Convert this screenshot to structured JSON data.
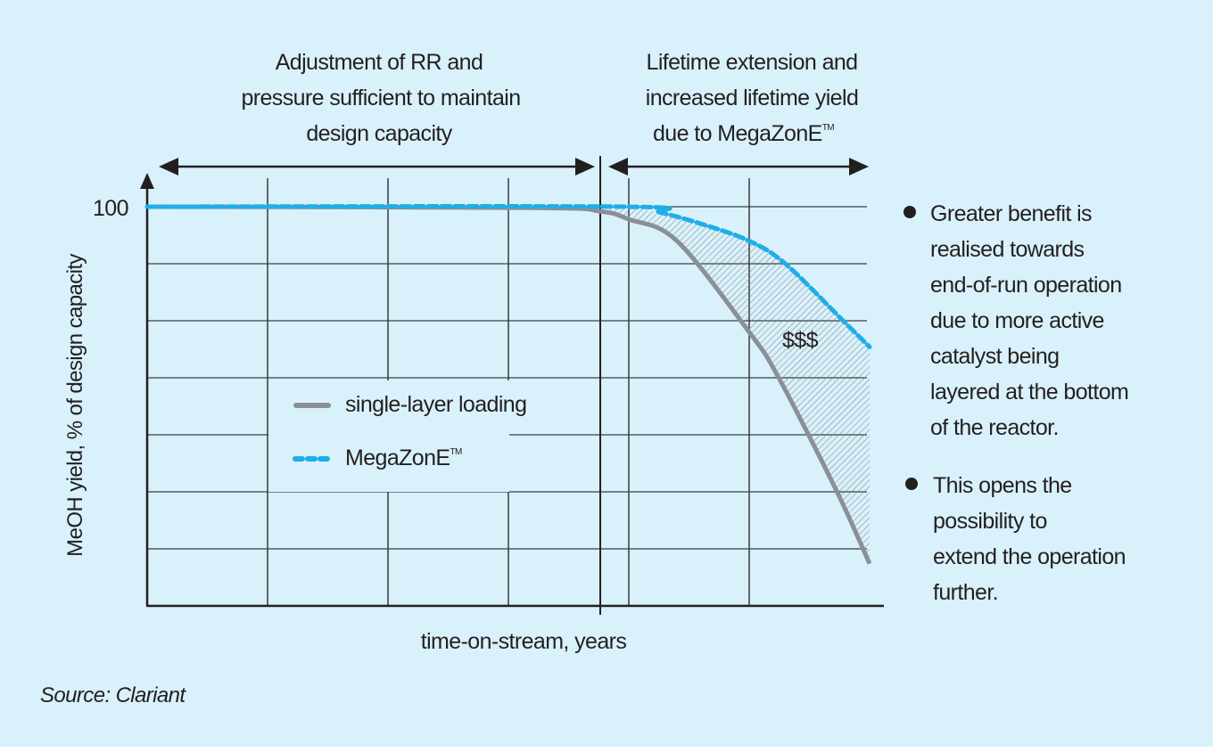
{
  "colors": {
    "background": "#d9f1fb",
    "single_layer": "#8a9096",
    "megazone": "#1eaee8",
    "grid": "#231f20"
  },
  "annotations": {
    "left_phase": [
      "Adjustment of RR and",
      "pressure sufficient to maintain",
      "design capacity"
    ],
    "right_phase": [
      "Lifetime extension and",
      "increased lifetime yield",
      "due to MegaZonE"
    ],
    "right_phase_tm": "TM",
    "area_label": "$$$"
  },
  "notes": {
    "bullet1": [
      "Greater benefit is",
      "realised towards",
      "end-of-run operation",
      "due to more active",
      "catalyst being",
      "layered at the bottom",
      "of the reactor."
    ],
    "bullet2": [
      "This opens the",
      "possibility to",
      "extend the operation",
      "further."
    ]
  },
  "source": "Source: Clariant",
  "chart_data": {
    "type": "line",
    "title": "",
    "xlabel": "time-on-stream, years",
    "ylabel": "MeOH yield, % of design capacity",
    "ytick_labels": [
      "100"
    ],
    "xlim": [
      0,
      6.1
    ],
    "ylim": [
      65,
      100
    ],
    "grid": true,
    "legend_position": "center-left",
    "series": [
      {
        "name": "single-layer loading",
        "style": "solid",
        "x": [
          0,
          3.2,
          3.76,
          4.0,
          4.4,
          5.0,
          5.24,
          5.72,
          6.0
        ],
        "y": [
          100,
          99.9,
          99.6,
          98.9,
          97.0,
          89.0,
          85.1,
          75.2,
          68.7
        ]
      },
      {
        "name": "MegaZonE",
        "name_suffix": "TM",
        "style": "dashed",
        "x": [
          0,
          3.96,
          4.26,
          4.63,
          5.0,
          5.3,
          5.78,
          6.0
        ],
        "y": [
          100,
          100,
          99.5,
          98.4,
          97.0,
          95.0,
          90.0,
          87.7
        ]
      }
    ]
  }
}
